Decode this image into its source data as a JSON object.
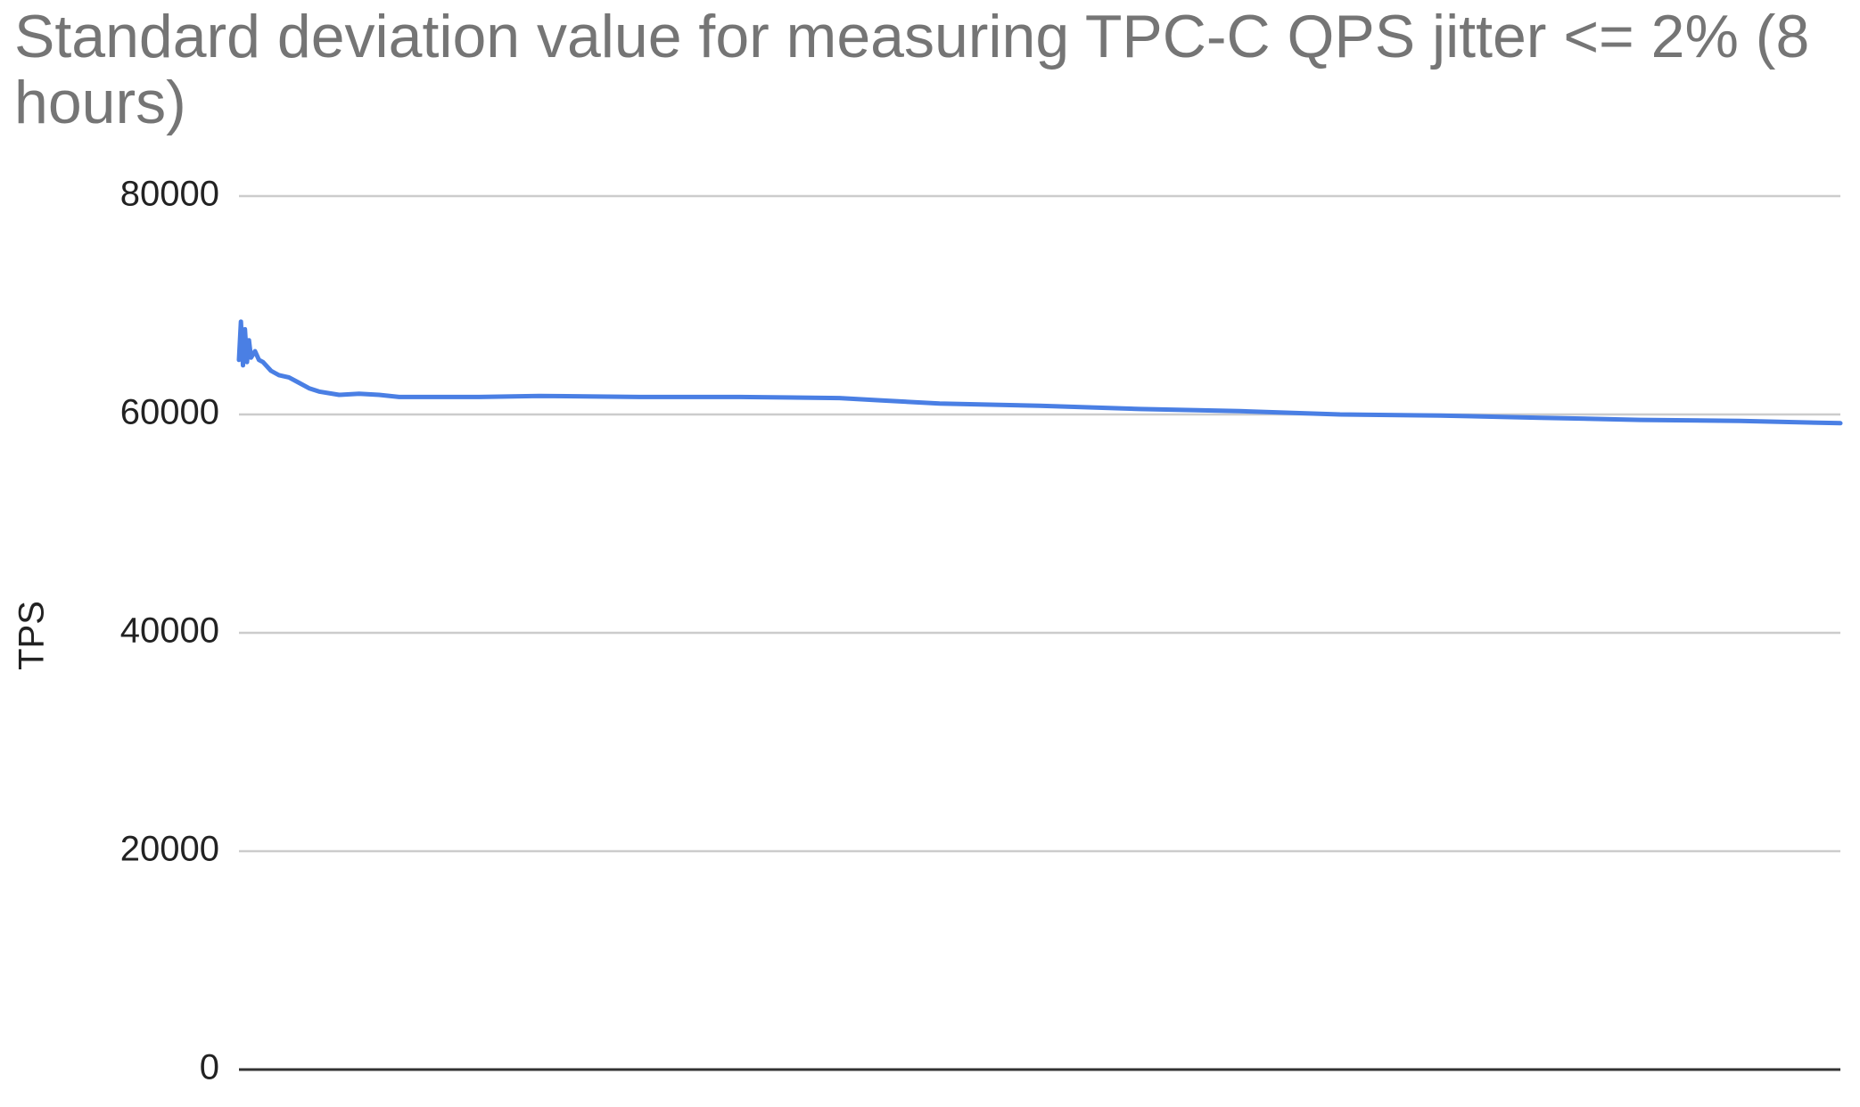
{
  "chart_data": {
    "type": "line",
    "title": "Standard deviation value for measuring TPC-C QPS jitter <= 2% (8 hours)",
    "xlabel": "",
    "ylabel": "TPS",
    "ylim": [
      0,
      80000
    ],
    "yticks": [
      "0",
      "20000",
      "40000",
      "60000",
      "80000"
    ],
    "grid": true,
    "legend": "none",
    "x_range": [
      0,
      8
    ],
    "colors": {
      "line": "#4a7fe4",
      "grid": "#cccccc",
      "axis": "#333333"
    },
    "series": [
      {
        "x": [
          0,
          0.01,
          0.02,
          0.03,
          0.04,
          0.05,
          0.06,
          0.08,
          0.1,
          0.12,
          0.14,
          0.16,
          0.18,
          0.2,
          0.25,
          0.3,
          0.35,
          0.4,
          0.5,
          0.6,
          0.7,
          0.8,
          1.0,
          1.2,
          1.5,
          2.0,
          2.5,
          3.0,
          3.2,
          3.5,
          4.0,
          4.5,
          5.0,
          5.5,
          6.0,
          6.5,
          7.0,
          7.5,
          8.0
        ],
        "values": [
          65000,
          68500,
          64500,
          67800,
          64800,
          66800,
          65200,
          65800,
          65000,
          64800,
          64400,
          64000,
          63800,
          63600,
          63400,
          62900,
          62400,
          62100,
          61800,
          61900,
          61800,
          61600,
          61600,
          61600,
          61700,
          61600,
          61600,
          61500,
          61300,
          61000,
          60800,
          60500,
          60300,
          60000,
          59900,
          59700,
          59500,
          59400,
          59200
        ]
      }
    ]
  }
}
